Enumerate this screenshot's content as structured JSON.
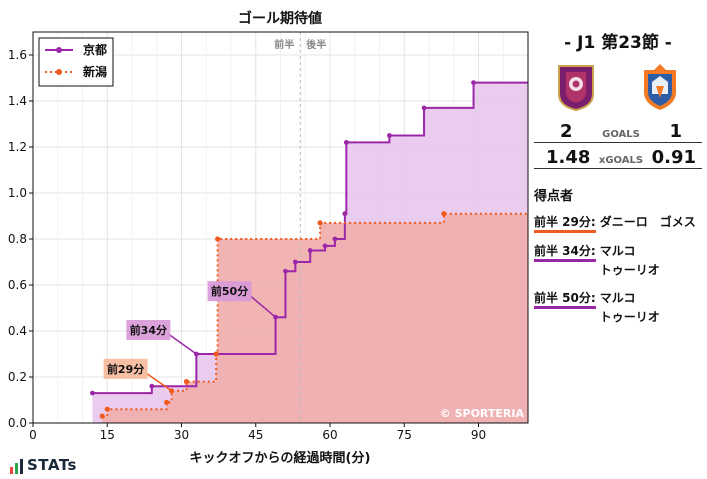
{
  "chart_data": {
    "type": "step-area",
    "title": "ゴール期待値",
    "xlabel": "キックオフからの経過時間(分)",
    "ylabel": "",
    "xlim": [
      0,
      100
    ],
    "ylim": [
      0,
      1.7
    ],
    "xticks": [
      0,
      15,
      30,
      45,
      60,
      75,
      90
    ],
    "yticks": [
      0.0,
      0.2,
      0.4,
      0.6,
      0.8,
      1.0,
      1.2,
      1.4,
      1.6
    ],
    "half_marker": {
      "x": 54,
      "first_half_label": "前半",
      "second_half_label": "後半"
    },
    "legend": [
      {
        "name": "京都",
        "style": "solid"
      },
      {
        "name": "新潟",
        "style": "dotted"
      }
    ],
    "series": [
      {
        "name": "京都",
        "color": "#9b27a8",
        "fill": "#e8c8ec",
        "points": [
          [
            12,
            0.13
          ],
          [
            24,
            0.16
          ],
          [
            33,
            0.3
          ],
          [
            49,
            0.46
          ],
          [
            51,
            0.66
          ],
          [
            53,
            0.7
          ],
          [
            56,
            0.75
          ],
          [
            59,
            0.77
          ],
          [
            61,
            0.8
          ],
          [
            63,
            0.91
          ],
          [
            63.3,
            1.22
          ],
          [
            72,
            1.25
          ],
          [
            79,
            1.37
          ],
          [
            89,
            1.48
          ],
          [
            101,
            1.48
          ]
        ]
      },
      {
        "name": "新潟",
        "color": "#f05a1e",
        "fill": "#f9cdb6",
        "points": [
          [
            14,
            0.03
          ],
          [
            15,
            0.06
          ],
          [
            27,
            0.09
          ],
          [
            28,
            0.14
          ],
          [
            31,
            0.18
          ],
          [
            37,
            0.3
          ],
          [
            37.3,
            0.8
          ],
          [
            58,
            0.87
          ],
          [
            83,
            0.91
          ],
          [
            101,
            0.91
          ]
        ]
      }
    ],
    "annotations": [
      {
        "label": "前29分",
        "x": 28,
        "y": 0.14,
        "team": "新潟"
      },
      {
        "label": "前34分",
        "x": 33,
        "y": 0.3,
        "team": "京都"
      },
      {
        "label": "前50分",
        "x": 49,
        "y": 0.46,
        "team": "京都"
      }
    ],
    "watermark": "© SPORTERIA"
  },
  "brand": {
    "name": "STATs"
  },
  "match": {
    "title": "- J1 第23節 -",
    "home": {
      "name": "京都",
      "goals": "2",
      "xg": "1.48",
      "color": "#9b27a8"
    },
    "away": {
      "name": "新潟",
      "goals": "1",
      "xg": "0.91",
      "color": "#f05a1e"
    },
    "goals_label": "GOALS",
    "xgoals_label": "xGOALS",
    "scorers_title": "得点者",
    "scorers": [
      {
        "time": "前半 29分:",
        "name": "ダニーロ　ゴメス",
        "team": "新潟",
        "color": "#f05a1e"
      },
      {
        "time": "前半 34分:",
        "name": "マルコ\nトゥーリオ",
        "team": "京都",
        "color": "#9b27a8"
      },
      {
        "time": "前半 50分:",
        "name": "マルコ\nトゥーリオ",
        "team": "京都",
        "color": "#9b27a8"
      }
    ]
  }
}
